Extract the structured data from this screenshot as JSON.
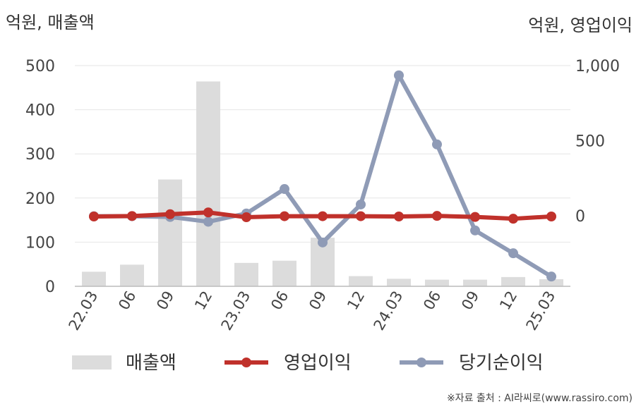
{
  "chart_data": {
    "type": "bar+line",
    "title": "",
    "left_axis_unit": "억원, 매출액",
    "right_axis_unit": "억원, 영업이익",
    "categories": [
      "22.03",
      "06",
      "09",
      "12",
      "23.03",
      "06",
      "09",
      "12",
      "24.03",
      "06",
      "09",
      "12",
      "25.03"
    ],
    "left_ylim": [
      0,
      500
    ],
    "left_ticks": [
      0,
      100,
      200,
      300,
      400,
      500
    ],
    "right_ylim": [
      -470,
      1000
    ],
    "right_ticks": [
      0,
      500,
      1000
    ],
    "right_tick_labels": [
      "0",
      "500",
      "1,000"
    ],
    "grid": true,
    "legend_position": "bottom",
    "series": [
      {
        "name": "매출액",
        "type": "bar",
        "axis": "left",
        "color": "#dcdcdc",
        "values": [
          33,
          49,
          242,
          464,
          53,
          58,
          110,
          23,
          17,
          15,
          15,
          21,
          16
        ]
      },
      {
        "name": "영업이익",
        "type": "line",
        "axis": "right",
        "color": "#c0312b",
        "values": [
          -5,
          -2,
          10,
          22,
          -10,
          -3,
          -3,
          -3,
          -5,
          -1,
          -8,
          -20,
          -5
        ]
      },
      {
        "name": "당기순이익",
        "type": "line",
        "axis": "right",
        "color": "#8f9bb6",
        "values": [
          -3,
          -3,
          -8,
          -40,
          15,
          178,
          -178,
          75,
          935,
          475,
          -98,
          -250,
          -405
        ]
      }
    ]
  },
  "source": "※자료 출처 : AI라씨로(www.rassiro.com)"
}
